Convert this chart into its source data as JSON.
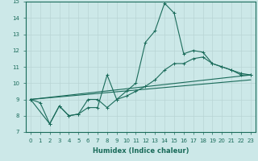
{
  "xlabel": "Humidex (Indice chaleur)",
  "bg_color": "#cce8e8",
  "grid_color": "#b8d4d4",
  "line_color": "#1a6b5a",
  "xlim_min": -0.5,
  "xlim_max": 23.5,
  "ylim_min": 7,
  "ylim_max": 15,
  "xticks": [
    0,
    1,
    2,
    3,
    4,
    5,
    6,
    7,
    8,
    9,
    10,
    11,
    12,
    13,
    14,
    15,
    16,
    17,
    18,
    19,
    20,
    21,
    22,
    23
  ],
  "yticks": [
    7,
    8,
    9,
    10,
    11,
    12,
    13,
    14,
    15
  ],
  "line1_x": [
    0,
    1,
    2,
    3,
    4,
    5,
    6,
    7,
    8,
    9,
    10,
    11,
    12,
    13,
    14,
    15,
    16,
    17,
    18,
    19,
    20,
    21,
    22,
    23
  ],
  "line1_y": [
    9.0,
    8.8,
    7.5,
    8.6,
    8.0,
    8.1,
    9.0,
    9.0,
    8.5,
    9.0,
    9.5,
    10.0,
    12.5,
    13.2,
    14.9,
    14.3,
    11.8,
    12.0,
    11.9,
    11.2,
    11.0,
    10.8,
    10.6,
    10.5
  ],
  "line2_x": [
    0,
    2,
    3,
    4,
    5,
    6,
    7,
    8,
    9,
    10,
    11,
    12,
    13,
    14,
    15,
    16,
    17,
    18,
    19,
    20,
    21,
    22,
    23
  ],
  "line2_y": [
    9.0,
    7.5,
    8.6,
    8.0,
    8.1,
    8.5,
    8.5,
    10.5,
    9.0,
    9.2,
    9.5,
    9.8,
    10.2,
    10.8,
    11.2,
    11.2,
    11.5,
    11.6,
    11.2,
    11.0,
    10.8,
    10.5,
    10.5
  ],
  "line3_x": [
    0,
    23
  ],
  "line3_y": [
    9.0,
    10.5
  ],
  "line4_x": [
    0,
    23
  ],
  "line4_y": [
    9.0,
    10.2
  ]
}
